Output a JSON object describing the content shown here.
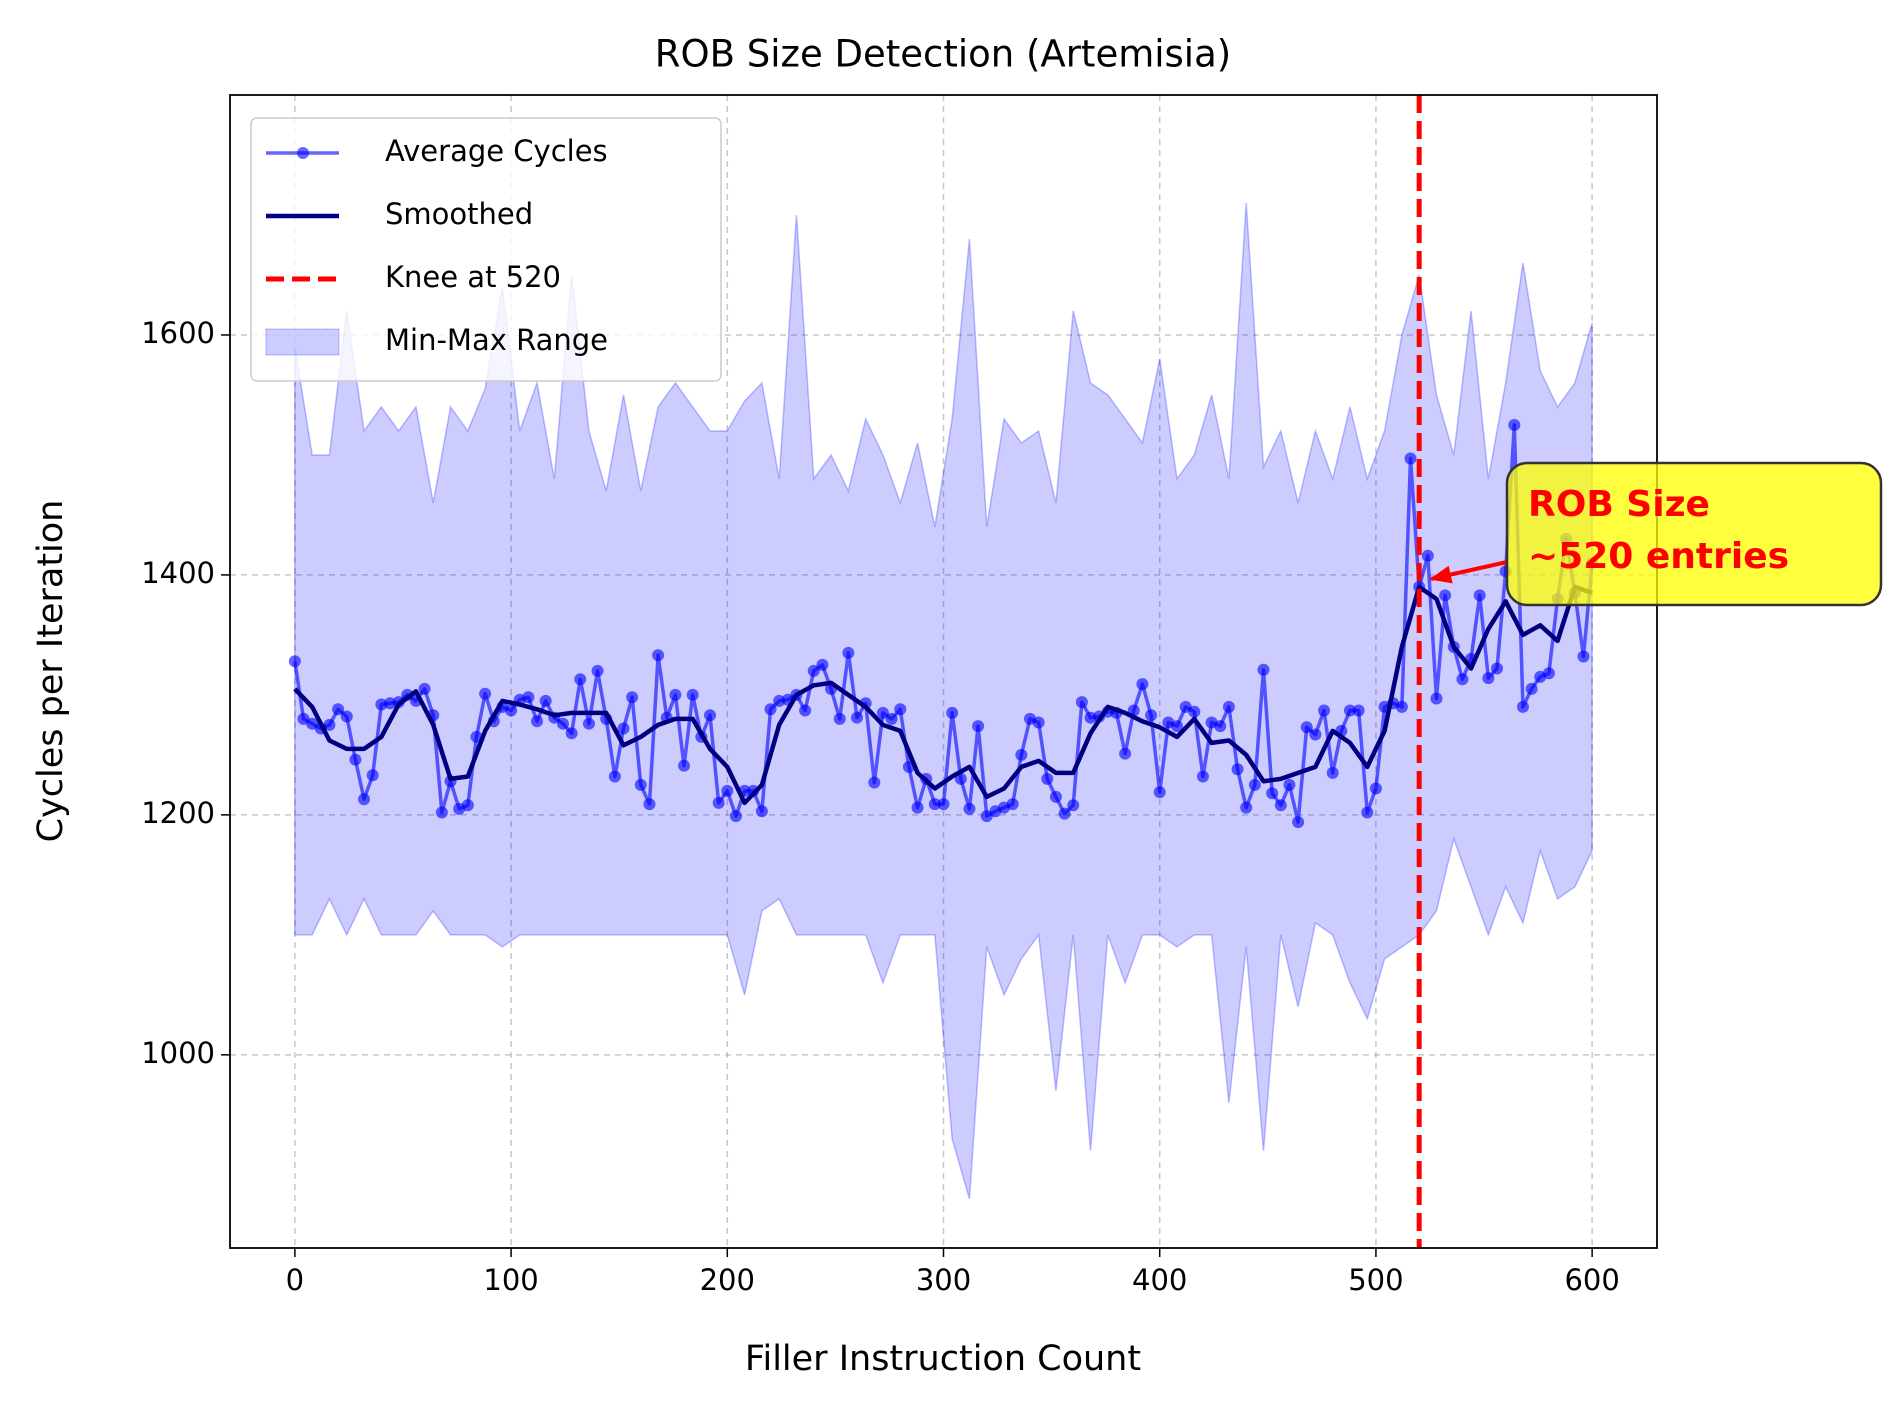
{
  "chart_data": {
    "type": "line",
    "title": "ROB Size Detection (Artemisia)",
    "xlabel": "Filler Instruction Count",
    "ylabel": "Cycles per Iteration",
    "xlim": [
      -30,
      630
    ],
    "ylim": [
      839,
      1800
    ],
    "xticks": [
      0,
      100,
      200,
      300,
      400,
      500,
      600
    ],
    "yticks": [
      1000,
      1200,
      1400,
      1600
    ],
    "grid": true,
    "legend": "upper left",
    "series": [
      {
        "name": "Average Cycles",
        "color": "#0000ff",
        "x": [
          0,
          4,
          8,
          12,
          16,
          20,
          24,
          28,
          32,
          36,
          40,
          44,
          48,
          52,
          56,
          60,
          64,
          68,
          72,
          76,
          80,
          84,
          88,
          92,
          96,
          100,
          104,
          108,
          112,
          116,
          120,
          124,
          128,
          132,
          136,
          140,
          144,
          148,
          152,
          156,
          160,
          164,
          168,
          172,
          176,
          180,
          184,
          188,
          192,
          196,
          200,
          204,
          208,
          212,
          216,
          220,
          224,
          228,
          232,
          236,
          240,
          244,
          248,
          252,
          256,
          260,
          264,
          268,
          272,
          276,
          280,
          284,
          288,
          292,
          296,
          300,
          304,
          308,
          312,
          316,
          320,
          324,
          328,
          332,
          336,
          340,
          344,
          348,
          352,
          356,
          360,
          364,
          368,
          372,
          376,
          380,
          384,
          388,
          392,
          396,
          400,
          404,
          408,
          412,
          416,
          420,
          424,
          428,
          432,
          436,
          440,
          444,
          448,
          452,
          456,
          460,
          464,
          468,
          472,
          476,
          480,
          484,
          488,
          492,
          496,
          500,
          504,
          508,
          512,
          516,
          520,
          524,
          528,
          532,
          536,
          540,
          544,
          548,
          552,
          556,
          560,
          564,
          568,
          572,
          576,
          580,
          584,
          588,
          592,
          596,
          600
        ],
        "values": [
          1328,
          1280,
          1276,
          1272,
          1275,
          1288,
          1282,
          1246,
          1213,
          1233,
          1292,
          1293,
          1294,
          1300,
          1295,
          1305,
          1283,
          1202,
          1228,
          1205,
          1208,
          1265,
          1301,
          1278,
          1290,
          1287,
          1296,
          1298,
          1278,
          1295,
          1281,
          1276,
          1268,
          1313,
          1276,
          1320,
          1280,
          1232,
          1272,
          1298,
          1225,
          1209,
          1333,
          1281,
          1300,
          1241,
          1300,
          1265,
          1283,
          1210,
          1220,
          1199,
          1220,
          1220,
          1203,
          1288,
          1295,
          1296,
          1300,
          1287,
          1320,
          1325,
          1305,
          1280,
          1335,
          1281,
          1293,
          1227,
          1285,
          1280,
          1288,
          1240,
          1206,
          1230,
          1209,
          1209,
          1285,
          1230,
          1205,
          1274,
          1199,
          1203,
          1206,
          1209,
          1250,
          1280,
          1277,
          1230,
          1215,
          1201,
          1208,
          1294,
          1281,
          1282,
          1286,
          1285,
          1251,
          1287,
          1309,
          1283,
          1219,
          1277,
          1274,
          1290,
          1286,
          1232,
          1277,
          1274,
          1290,
          1238,
          1206,
          1225,
          1321,
          1218,
          1208,
          1225,
          1194,
          1273,
          1267,
          1287,
          1235,
          1270,
          1287,
          1287,
          1202,
          1222,
          1290,
          1293,
          1290,
          1497,
          1390,
          1416,
          1297,
          1383,
          1340,
          1313,
          1330,
          1383,
          1314,
          1322,
          1403,
          1525,
          1290,
          1305,
          1315,
          1318,
          1380,
          1430,
          1385,
          1332,
          1410
        ]
      },
      {
        "name": "Smoothed",
        "color": "#000080",
        "x": [
          0,
          8,
          16,
          24,
          32,
          40,
          48,
          56,
          64,
          72,
          80,
          88,
          96,
          104,
          112,
          120,
          128,
          136,
          144,
          152,
          160,
          168,
          176,
          184,
          192,
          200,
          208,
          216,
          224,
          232,
          240,
          248,
          256,
          264,
          272,
          280,
          288,
          296,
          304,
          312,
          320,
          328,
          336,
          344,
          352,
          360,
          368,
          376,
          384,
          392,
          400,
          408,
          416,
          424,
          432,
          440,
          448,
          456,
          464,
          472,
          480,
          488,
          496,
          504,
          512,
          520,
          528,
          536,
          544,
          552,
          560,
          568,
          576,
          584,
          592,
          600
        ],
        "values": [
          1305,
          1290,
          1262,
          1255,
          1255,
          1265,
          1292,
          1303,
          1275,
          1230,
          1232,
          1270,
          1295,
          1292,
          1288,
          1283,
          1285,
          1285,
          1285,
          1258,
          1265,
          1275,
          1280,
          1280,
          1255,
          1240,
          1210,
          1225,
          1275,
          1300,
          1308,
          1310,
          1300,
          1290,
          1275,
          1270,
          1235,
          1222,
          1232,
          1240,
          1215,
          1222,
          1240,
          1245,
          1235,
          1235,
          1268,
          1290,
          1285,
          1278,
          1273,
          1265,
          1280,
          1260,
          1262,
          1250,
          1228,
          1230,
          1235,
          1240,
          1270,
          1260,
          1240,
          1270,
          1340,
          1390,
          1380,
          1340,
          1322,
          1355,
          1378,
          1350,
          1358,
          1345,
          1390,
          1385
        ]
      }
    ],
    "knee": {
      "name": "Knee at 520",
      "color": "#ff0000",
      "x": 520
    },
    "band": {
      "name": "Min-Max Range",
      "color": "#0000ff",
      "x": [
        0,
        8,
        16,
        24,
        32,
        40,
        48,
        56,
        64,
        72,
        80,
        88,
        96,
        104,
        112,
        120,
        128,
        136,
        144,
        152,
        160,
        168,
        176,
        184,
        192,
        200,
        208,
        216,
        224,
        232,
        240,
        248,
        256,
        264,
        272,
        280,
        288,
        296,
        304,
        312,
        320,
        328,
        336,
        344,
        352,
        360,
        368,
        376,
        384,
        392,
        400,
        408,
        416,
        424,
        432,
        440,
        448,
        456,
        464,
        472,
        480,
        488,
        496,
        504,
        512,
        520,
        528,
        536,
        544,
        552,
        560,
        568,
        576,
        584,
        592,
        600
      ],
      "max": [
        1590,
        1500,
        1500,
        1620,
        1520,
        1540,
        1520,
        1540,
        1460,
        1540,
        1520,
        1555,
        1640,
        1520,
        1560,
        1480,
        1650,
        1520,
        1470,
        1550,
        1470,
        1540,
        1560,
        1540,
        1520,
        1520,
        1545,
        1560,
        1480,
        1700,
        1480,
        1500,
        1470,
        1530,
        1500,
        1460,
        1510,
        1440,
        1530,
        1680,
        1440,
        1530,
        1510,
        1520,
        1460,
        1620,
        1560,
        1550,
        1530,
        1510,
        1580,
        1480,
        1500,
        1550,
        1480,
        1710,
        1490,
        1520,
        1460,
        1520,
        1480,
        1540,
        1480,
        1520,
        1600,
        1650,
        1550,
        1500,
        1620,
        1480,
        1560,
        1660,
        1570,
        1540,
        1560,
        1610
      ],
      "min": [
        1100,
        1100,
        1130,
        1100,
        1130,
        1100,
        1100,
        1100,
        1120,
        1100,
        1100,
        1100,
        1090,
        1100,
        1100,
        1100,
        1100,
        1100,
        1100,
        1100,
        1100,
        1100,
        1100,
        1100,
        1100,
        1100,
        1050,
        1120,
        1130,
        1100,
        1100,
        1100,
        1100,
        1100,
        1060,
        1100,
        1100,
        1100,
        930,
        880,
        1090,
        1050,
        1080,
        1100,
        970,
        1100,
        920,
        1100,
        1060,
        1100,
        1100,
        1090,
        1100,
        1100,
        960,
        1090,
        920,
        1100,
        1040,
        1110,
        1100,
        1060,
        1030,
        1080,
        1090,
        1100,
        1120,
        1180,
        1140,
        1100,
        1140,
        1110,
        1170,
        1130,
        1140,
        1170
      ]
    },
    "annotation": {
      "text": [
        "ROB Size",
        "~520 entries"
      ]
    }
  }
}
